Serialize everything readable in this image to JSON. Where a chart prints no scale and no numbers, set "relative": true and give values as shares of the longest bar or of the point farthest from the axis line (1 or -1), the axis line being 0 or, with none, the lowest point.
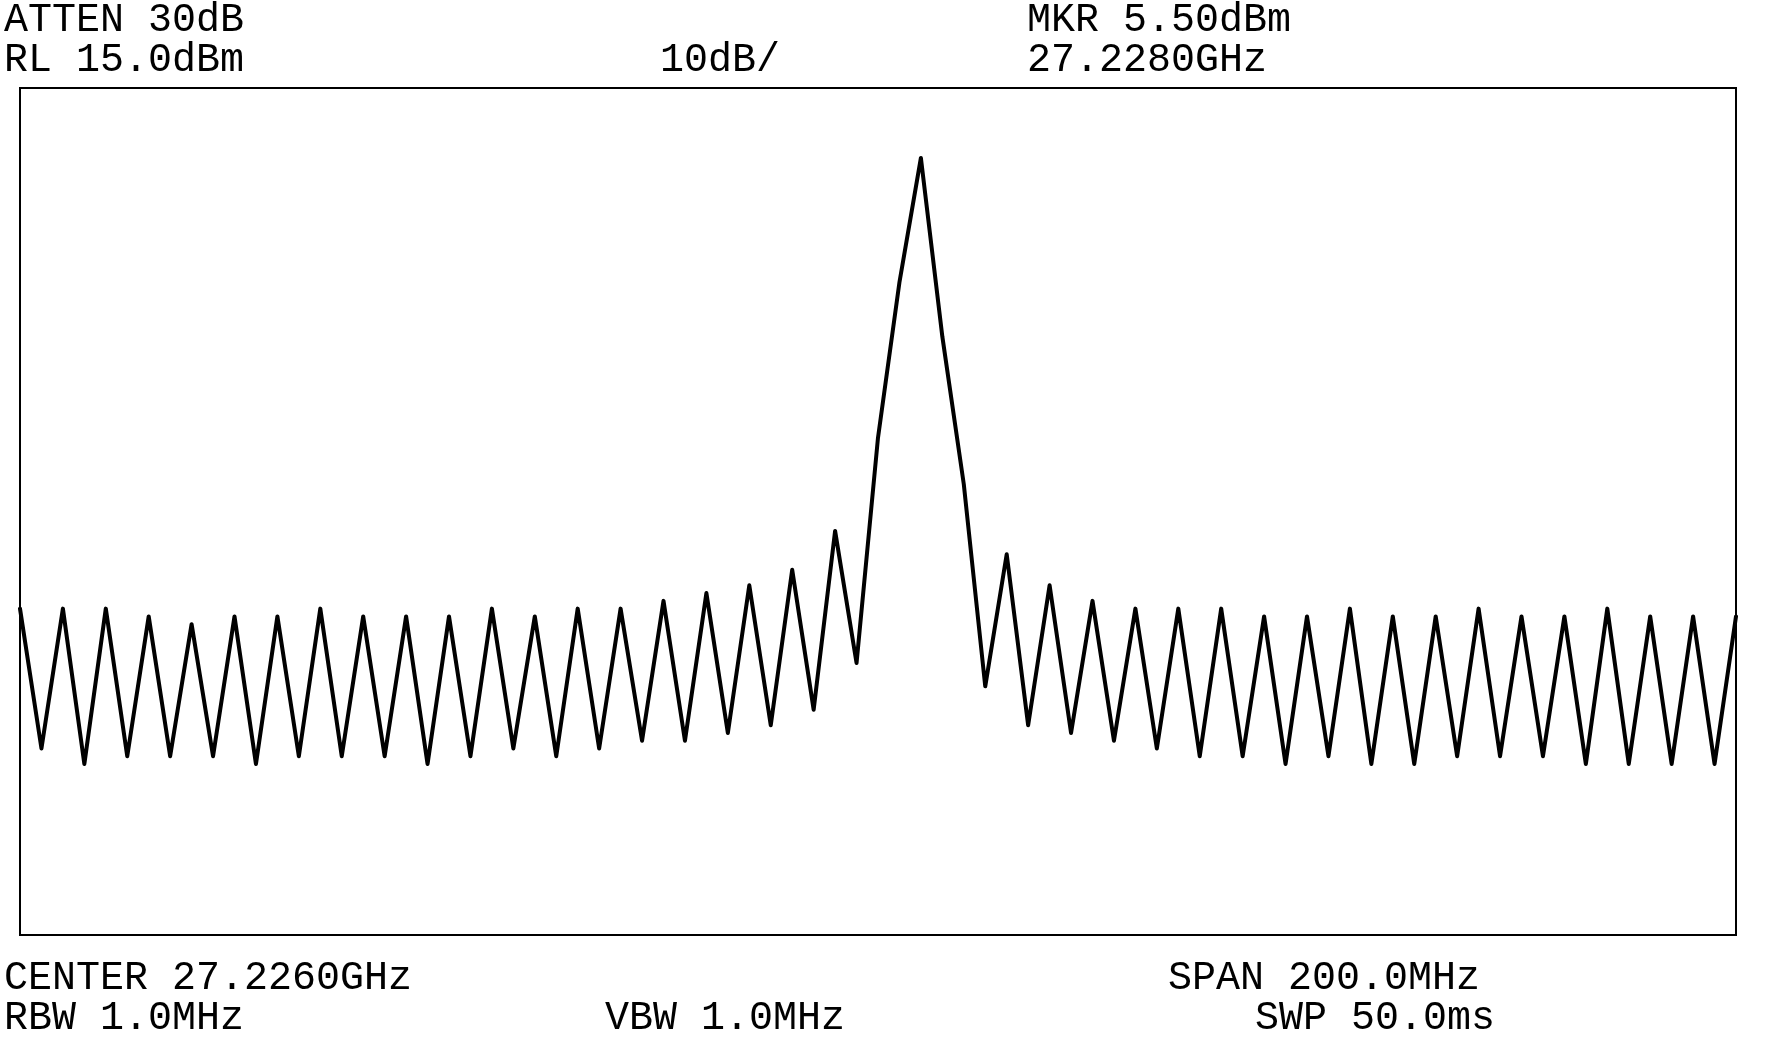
{
  "chart_data": {
    "type": "line",
    "relative": true,
    "grid": false,
    "marker": "none",
    "line_style": "solid",
    "annotations": [
      "ATTEN 30dB",
      "RL 15.0dBm",
      "10dB/",
      "MKR 5.50dBm",
      "27.2280GHz",
      "CENTER 27.2260GHz",
      "SPAN 200.0MHz",
      "RBW 1.0MHz",
      "VBW 1.0MHz",
      "SWP 50.0ms"
    ],
    "categories": [
      null,
      null,
      null,
      null,
      null,
      null,
      null,
      null,
      null,
      null,
      null,
      null,
      null,
      null,
      null,
      null,
      null,
      null,
      null,
      null,
      null,
      null,
      null,
      null,
      null,
      null,
      null,
      null,
      null,
      null,
      null,
      null,
      null,
      null,
      null,
      null,
      null,
      null,
      null,
      null,
      null,
      null,
      null,
      null,
      null,
      null,
      null,
      null,
      null,
      null,
      null,
      null,
      null,
      null,
      null,
      null,
      null,
      null,
      null,
      null,
      null,
      null,
      null,
      null,
      null,
      null,
      null,
      null,
      null,
      null,
      null,
      null,
      null,
      null,
      null,
      null,
      null,
      null,
      null,
      null,
      null
    ],
    "series": [
      {
        "color": "#000000",
        "values": [
          0.42,
          0.24,
          0.42,
          0.22,
          0.42,
          0.23,
          0.41,
          0.23,
          0.4,
          0.23,
          0.41,
          0.22,
          0.41,
          0.23,
          0.42,
          0.23,
          0.41,
          0.23,
          0.41,
          0.22,
          0.41,
          0.23,
          0.42,
          0.24,
          0.41,
          0.23,
          0.42,
          0.24,
          0.42,
          0.25,
          0.43,
          0.25,
          0.44,
          0.26,
          0.45,
          0.27,
          0.47,
          0.29,
          0.52,
          0.35,
          0.64,
          0.84,
          1.0,
          0.77,
          0.58,
          0.32,
          0.49,
          0.27,
          0.45,
          0.26,
          0.43,
          0.25,
          0.42,
          0.24,
          0.42,
          0.23,
          0.42,
          0.23,
          0.41,
          0.22,
          0.41,
          0.23,
          0.42,
          0.22,
          0.41,
          0.22,
          0.41,
          0.23,
          0.42,
          0.23,
          0.41,
          0.23,
          0.41,
          0.22,
          0.42,
          0.22,
          0.41,
          0.22,
          0.41,
          0.22,
          0.41
        ]
      }
    ]
  }
}
